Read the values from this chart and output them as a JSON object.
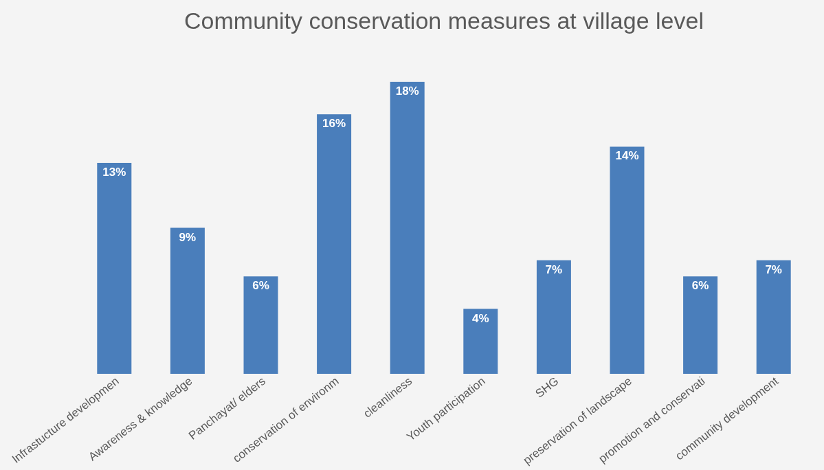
{
  "chart_data": {
    "type": "bar",
    "title": "Community conservation measures at village level",
    "categories": [
      "Infrastucture developmen",
      "Awareness & knowledge",
      "Panchayat/ elders",
      "conservation of environm",
      "cleanliness",
      "Youth participation",
      "SHG",
      "preservation of landscape",
      "promotion and conservati",
      "community development"
    ],
    "values": [
      13,
      9,
      6,
      16,
      18,
      4,
      7,
      14,
      6,
      7
    ],
    "value_labels": [
      "13%",
      "9%",
      "6%",
      "16%",
      "18%",
      "4%",
      "7%",
      "14%",
      "6%",
      "7%"
    ],
    "color": "#4a7ebb"
  }
}
